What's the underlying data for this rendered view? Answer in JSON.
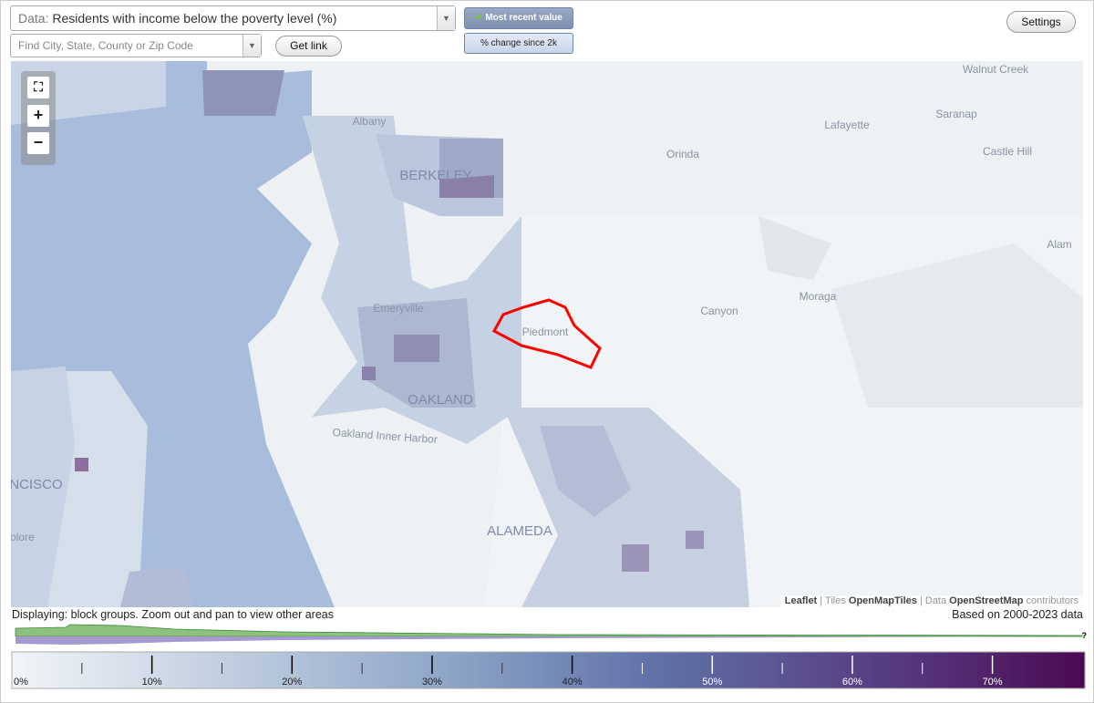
{
  "controls": {
    "data_label": "Data:",
    "data_value": "Residents with income below the poverty level (%)",
    "search_placeholder": "Find City, State, County or Zip Code",
    "get_link": "Get link",
    "most_recent": "Most recent value",
    "change": "% change since 2k",
    "settings": "Settings",
    "zoom_in": "+",
    "zoom_out": "−"
  },
  "map": {
    "labels": [
      "Walnut Creek",
      "Albany",
      "Lafayette",
      "Saranap",
      "BERKELEY",
      "Orinda",
      "Castle Hill",
      "Alam",
      "Moraga",
      "Canyon",
      "Emeryville",
      "Piedmont",
      "OAKLAND",
      "Oakland Inner Harbor",
      "AN FRANCISCO",
      "ALAMEDA",
      "yo Dolore"
    ],
    "attribution": {
      "leaflet": "Leaflet",
      "tiles": "| Tiles",
      "tiles_source": "OpenMapTiles",
      "data": "| Data",
      "data_source": "OpenStreetMap",
      "contributors": "contributors"
    }
  },
  "status": {
    "displaying": "Displaying: block groups. Zoom out and pan to view other areas",
    "based_on": "Based on 2000-2023 data",
    "help": "?"
  },
  "legend": {
    "range": [
      0,
      76.6
    ],
    "ticks": [
      {
        "value": 0,
        "label": "0%"
      },
      {
        "value": 10,
        "label": "10%"
      },
      {
        "value": 20,
        "label": "20%"
      },
      {
        "value": 30,
        "label": "30%"
      },
      {
        "value": 40,
        "label": "40%"
      },
      {
        "value": 50,
        "label": "50%"
      },
      {
        "value": 60,
        "label": "60%"
      },
      {
        "value": 70,
        "label": "70%"
      }
    ]
  }
}
